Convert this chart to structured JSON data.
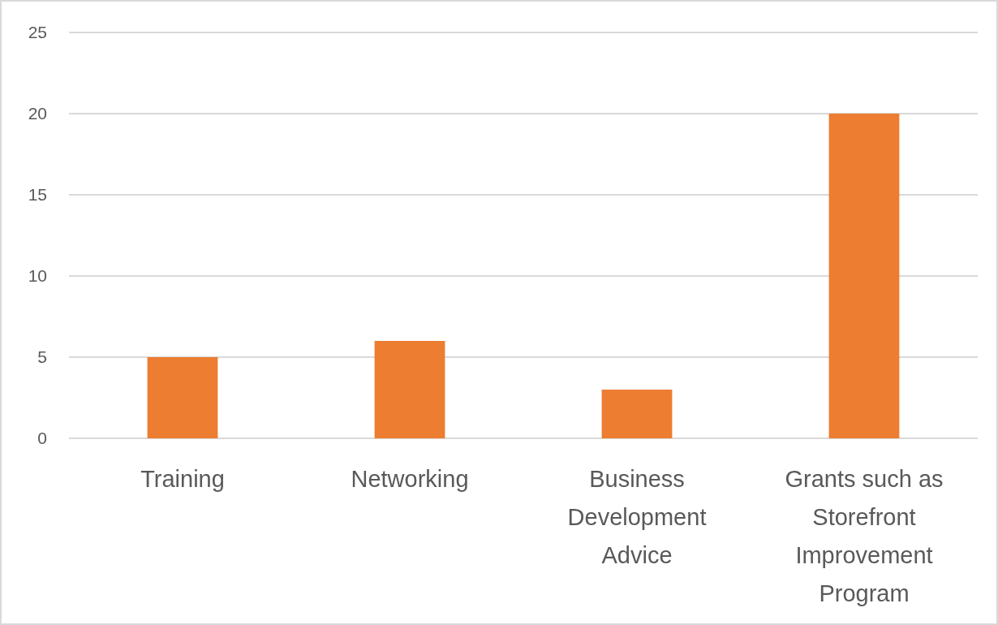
{
  "chart_data": {
    "type": "bar",
    "categories": [
      "Training",
      "Networking",
      "Business Development Advice",
      "Grants such as Storefront Improvement Program"
    ],
    "values": [
      5,
      6,
      3,
      20
    ],
    "color": "#ed7d31",
    "ylim": [
      0,
      25
    ],
    "yticks": [
      0,
      5,
      10,
      15,
      20,
      25
    ],
    "grid": "y"
  }
}
